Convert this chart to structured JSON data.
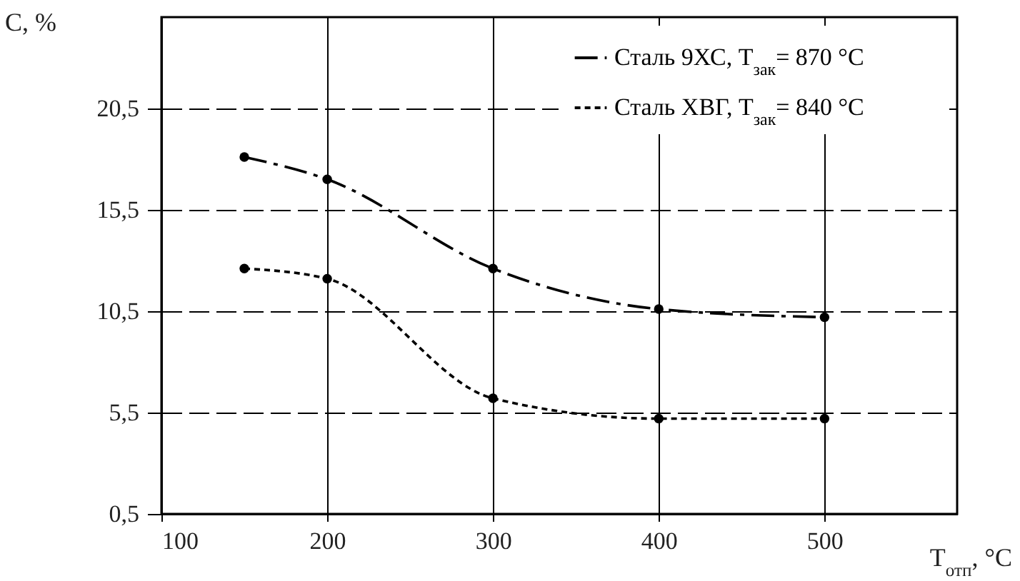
{
  "chart_data": {
    "type": "line",
    "ylabel": "C, %",
    "xlabel": "T$_{отп}$, °C",
    "x": [
      150,
      200,
      300,
      400,
      500
    ],
    "series": [
      {
        "name": "Сталь 9ХС, T$_{зак}$= 870 °C",
        "color": "#000000",
        "line_style": "dashed",
        "values": [
          18.1,
          17.0,
          12.6,
          10.6,
          10.2
        ]
      },
      {
        "name": "Сталь ХВГ, T$_{зак}$= 840 °C",
        "color": "#000000",
        "line_style": "dotted",
        "values": [
          12.6,
          12.1,
          6.2,
          5.2,
          5.2
        ]
      }
    ],
    "xlim": [
      100,
      580
    ],
    "xticks": [
      100,
      200,
      300,
      400,
      500
    ],
    "ylim": [
      0.5,
      25
    ],
    "yticks": [
      {
        "value": 0.5,
        "label": "0,5"
      },
      {
        "value": 5.5,
        "label": "5,5"
      },
      {
        "value": 10.5,
        "label": "10,5"
      },
      {
        "value": 15.5,
        "label": "15,5"
      },
      {
        "value": 20.5,
        "label": "20,5"
      }
    ],
    "grid": true,
    "legend": "top right",
    "marker": "circle"
  }
}
